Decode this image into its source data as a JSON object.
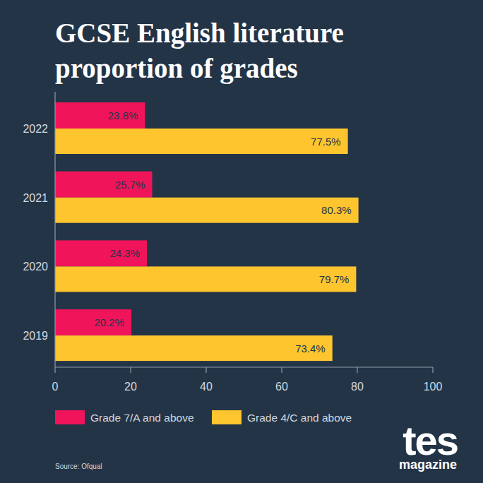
{
  "chart_data": {
    "type": "bar",
    "title": "GCSE English literature proportion of grades",
    "orientation": "horizontal",
    "categories": [
      "2022",
      "2021",
      "2020",
      "2019"
    ],
    "series": [
      {
        "name": "Grade 7/A and above",
        "color": "#f0145a",
        "values": [
          23.8,
          25.7,
          24.3,
          20.2
        ],
        "value_labels": [
          "23.8%",
          "25.7%",
          "24.3%",
          "20.2%"
        ]
      },
      {
        "name": "Grade 4/C and above",
        "color": "#fec52e",
        "values": [
          77.5,
          80.3,
          79.7,
          73.4
        ],
        "value_labels": [
          "77.5%",
          "80.3%",
          "79.7%",
          "73.4%"
        ]
      }
    ],
    "xlim": [
      0,
      100
    ],
    "xticks": [
      0,
      20,
      40,
      60,
      80,
      100
    ],
    "grid": false,
    "legend": "bottom",
    "data_labels": true,
    "source": "Source: Ofqual",
    "brand": "tes",
    "brand_subtitle": "magazine"
  }
}
